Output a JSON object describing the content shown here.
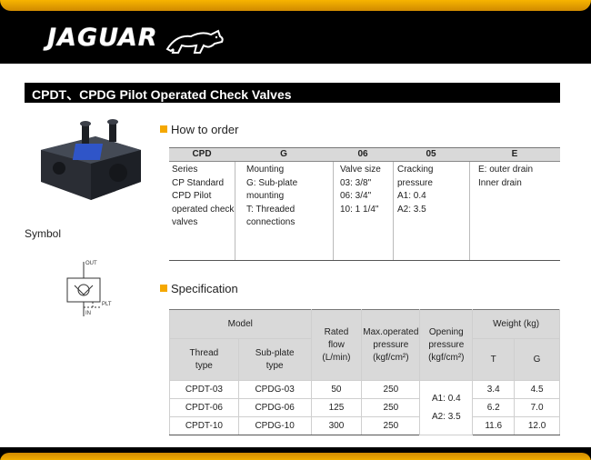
{
  "brand": {
    "logo_text": "JAGUAR"
  },
  "page": {
    "title": "CPDT、CPDG  Pilot Operated Check Valves"
  },
  "symbol": {
    "label": "Symbol",
    "port_out": "OUT",
    "port_plt": "PLT",
    "port_in": "IN"
  },
  "how_to_order": {
    "heading": "How to order",
    "headers": [
      "CPD",
      "G",
      "06",
      "05",
      "E"
    ],
    "columns": [
      [
        "Series",
        "CP Standard",
        "CPD Pilot",
        "operated check",
        "valves"
      ],
      [
        "Mounting",
        "G: Sub-plate",
        "mounting",
        "T: Threaded",
        "connections"
      ],
      [
        "Valve size",
        "03: 3/8\"",
        "06: 3/4\"",
        "10: 1 1/4\""
      ],
      [
        "Cracking",
        "pressure",
        "A1: 0.4",
        "A2: 3.5"
      ],
      [
        "E: outer drain",
        "Inner drain"
      ]
    ]
  },
  "specification": {
    "heading": "Specification",
    "model": "Model",
    "thread_type": [
      "Thread",
      "type"
    ],
    "subplate_type": [
      "Sub-plate",
      "type"
    ],
    "rated_flow": [
      "Rated",
      "flow",
      "(L/min)"
    ],
    "max_pressure": [
      "Max.operated",
      "pressure",
      "(kgf/cm²)"
    ],
    "opening_pressure": [
      "Opening",
      "pressure",
      "(kgf/cm²)"
    ],
    "weight": "Weight (kg)",
    "weight_t": "T",
    "weight_g": "G",
    "opening_values": [
      "A1: 0.4",
      "A2: 3.5"
    ],
    "rows": [
      {
        "thread": "CPDT-03",
        "subplate": "CPDG-03",
        "flow": "50",
        "pressure": "250",
        "wt": "3.4",
        "wg": "4.5"
      },
      {
        "thread": "CPDT-06",
        "subplate": "CPDG-06",
        "flow": "125",
        "pressure": "250",
        "wt": "6.2",
        "wg": "7.0"
      },
      {
        "thread": "CPDT-10",
        "subplate": "CPDG-10",
        "flow": "300",
        "pressure": "250",
        "wt": "11.6",
        "wg": "12.0"
      }
    ]
  },
  "colors": {
    "accent": "#f5a800",
    "header_bg": "#000000",
    "table_head": "#d9d9d9"
  }
}
